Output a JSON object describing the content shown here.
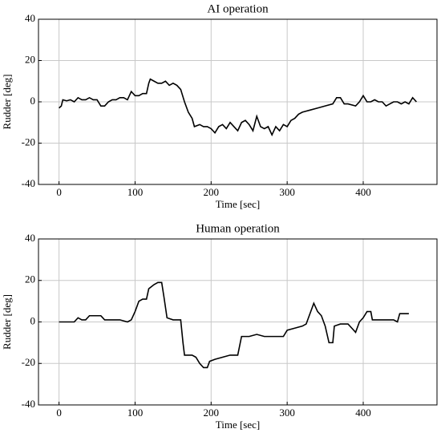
{
  "chart_data": [
    {
      "type": "line",
      "title": "AI operation",
      "xlabel": "Time [sec]",
      "ylabel": "Rudder [deg]",
      "xlim": [
        -27,
        497
      ],
      "ylim": [
        -40,
        40
      ],
      "xticks": [
        0,
        100,
        200,
        300,
        400
      ],
      "yticks": [
        -40,
        -20,
        0,
        20,
        40
      ],
      "grid": true,
      "x": [
        0,
        3,
        5,
        10,
        15,
        20,
        25,
        30,
        35,
        40,
        45,
        50,
        55,
        60,
        65,
        70,
        75,
        80,
        85,
        90,
        95,
        100,
        105,
        110,
        115,
        118,
        120,
        125,
        130,
        135,
        140,
        145,
        150,
        155,
        160,
        165,
        170,
        175,
        178,
        185,
        190,
        195,
        200,
        205,
        210,
        215,
        220,
        225,
        230,
        235,
        240,
        245,
        250,
        255,
        260,
        265,
        270,
        275,
        280,
        285,
        290,
        295,
        300,
        305,
        310,
        315,
        320,
        330,
        340,
        350,
        360,
        365,
        370,
        375,
        380,
        390,
        395,
        400,
        405,
        410,
        415,
        420,
        425,
        430,
        435,
        440,
        445,
        450,
        455,
        460,
        465,
        470
      ],
      "series": [
        {
          "name": "AI",
          "color": "#000000",
          "values": [
            -3,
            -2,
            1,
            0.5,
            1,
            0,
            2,
            1,
            1,
            2,
            1,
            1,
            -2,
            -2,
            0,
            1,
            1,
            2,
            2,
            1,
            5,
            3,
            3,
            4,
            4,
            9,
            11,
            10,
            9,
            9,
            10,
            8,
            9,
            8,
            6,
            0,
            -5,
            -8,
            -12,
            -11,
            -12,
            -12,
            -13,
            -15,
            -12,
            -11,
            -13,
            -10,
            -12,
            -14,
            -10,
            -9,
            -11,
            -14,
            -7,
            -12,
            -13,
            -12,
            -16,
            -12,
            -14,
            -11,
            -12,
            -9,
            -8,
            -6,
            -5,
            -4,
            -3,
            -2,
            -1,
            2,
            2,
            -1,
            -1,
            -2,
            0,
            3,
            0,
            0,
            1,
            0,
            0,
            -2,
            -1,
            0,
            0,
            -1,
            0,
            -1,
            2,
            0
          ]
        }
      ]
    },
    {
      "type": "line",
      "title": "Human operation",
      "xlabel": "Time [sec]",
      "ylabel": "Rudder [deg]",
      "xlim": [
        -27,
        497
      ],
      "ylim": [
        -40,
        40
      ],
      "xticks": [
        0,
        100,
        200,
        300,
        400
      ],
      "yticks": [
        -40,
        -20,
        0,
        20,
        40
      ],
      "grid": true,
      "x": [
        0,
        20,
        25,
        30,
        35,
        40,
        45,
        55,
        60,
        70,
        80,
        90,
        95,
        100,
        105,
        110,
        115,
        118,
        125,
        130,
        135,
        138,
        142,
        150,
        155,
        160,
        163,
        165,
        175,
        180,
        185,
        190,
        195,
        198,
        205,
        215,
        225,
        235,
        240,
        250,
        260,
        270,
        285,
        295,
        300,
        310,
        320,
        325,
        330,
        335,
        340,
        345,
        350,
        355,
        360,
        362,
        370,
        380,
        385,
        390,
        395,
        400,
        405,
        410,
        412,
        420,
        430,
        440,
        445,
        448,
        460
      ],
      "series": [
        {
          "name": "Human",
          "color": "#000000",
          "values": [
            0,
            0,
            2,
            1,
            1,
            3,
            3,
            3,
            1,
            1,
            1,
            0,
            1,
            5,
            10,
            11,
            11,
            16,
            18,
            19,
            19,
            12,
            2,
            1,
            1,
            1,
            -10,
            -16,
            -16,
            -17,
            -20,
            -22,
            -22,
            -19,
            -18,
            -17,
            -16,
            -16,
            -7,
            -7,
            -6,
            -7,
            -7,
            -7,
            -4,
            -3,
            -2,
            -1,
            4,
            9,
            5,
            3,
            -2,
            -10,
            -10,
            -2,
            -1,
            -1,
            -3,
            -5,
            0,
            2,
            5,
            5,
            1,
            1,
            1,
            1,
            0,
            4,
            4
          ]
        }
      ]
    }
  ]
}
